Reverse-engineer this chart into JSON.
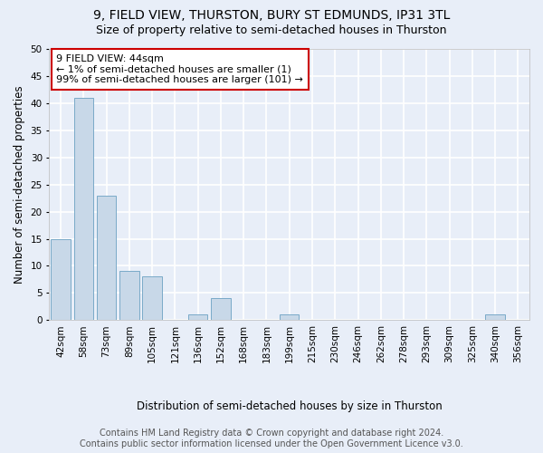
{
  "title": "9, FIELD VIEW, THURSTON, BURY ST EDMUNDS, IP31 3TL",
  "subtitle": "Size of property relative to semi-detached houses in Thurston",
  "xlabel": "Distribution of semi-detached houses by size in Thurston",
  "ylabel": "Number of semi-detached properties",
  "categories": [
    "42sqm",
    "58sqm",
    "73sqm",
    "89sqm",
    "105sqm",
    "121sqm",
    "136sqm",
    "152sqm",
    "168sqm",
    "183sqm",
    "199sqm",
    "215sqm",
    "230sqm",
    "246sqm",
    "262sqm",
    "278sqm",
    "293sqm",
    "309sqm",
    "325sqm",
    "340sqm",
    "356sqm"
  ],
  "values": [
    15,
    41,
    23,
    9,
    8,
    0,
    1,
    4,
    0,
    0,
    1,
    0,
    0,
    0,
    0,
    0,
    0,
    0,
    0,
    1,
    0
  ],
  "bar_color": "#c8d8e8",
  "bar_edge_color": "#7aaac8",
  "annotation_text": "9 FIELD VIEW: 44sqm\n← 1% of semi-detached houses are smaller (1)\n99% of semi-detached houses are larger (101) →",
  "annotation_box_color": "#ffffff",
  "annotation_box_edge_color": "#cc0000",
  "ylim": [
    0,
    50
  ],
  "yticks": [
    0,
    5,
    10,
    15,
    20,
    25,
    30,
    35,
    40,
    45,
    50
  ],
  "footer": "Contains HM Land Registry data © Crown copyright and database right 2024.\nContains public sector information licensed under the Open Government Licence v3.0.",
  "bg_color": "#e8eef8",
  "plot_bg_color": "#e8eef8",
  "grid_color": "#ffffff",
  "title_fontsize": 10,
  "subtitle_fontsize": 9,
  "axis_label_fontsize": 8.5,
  "tick_fontsize": 7.5,
  "annotation_fontsize": 8,
  "footer_fontsize": 7
}
